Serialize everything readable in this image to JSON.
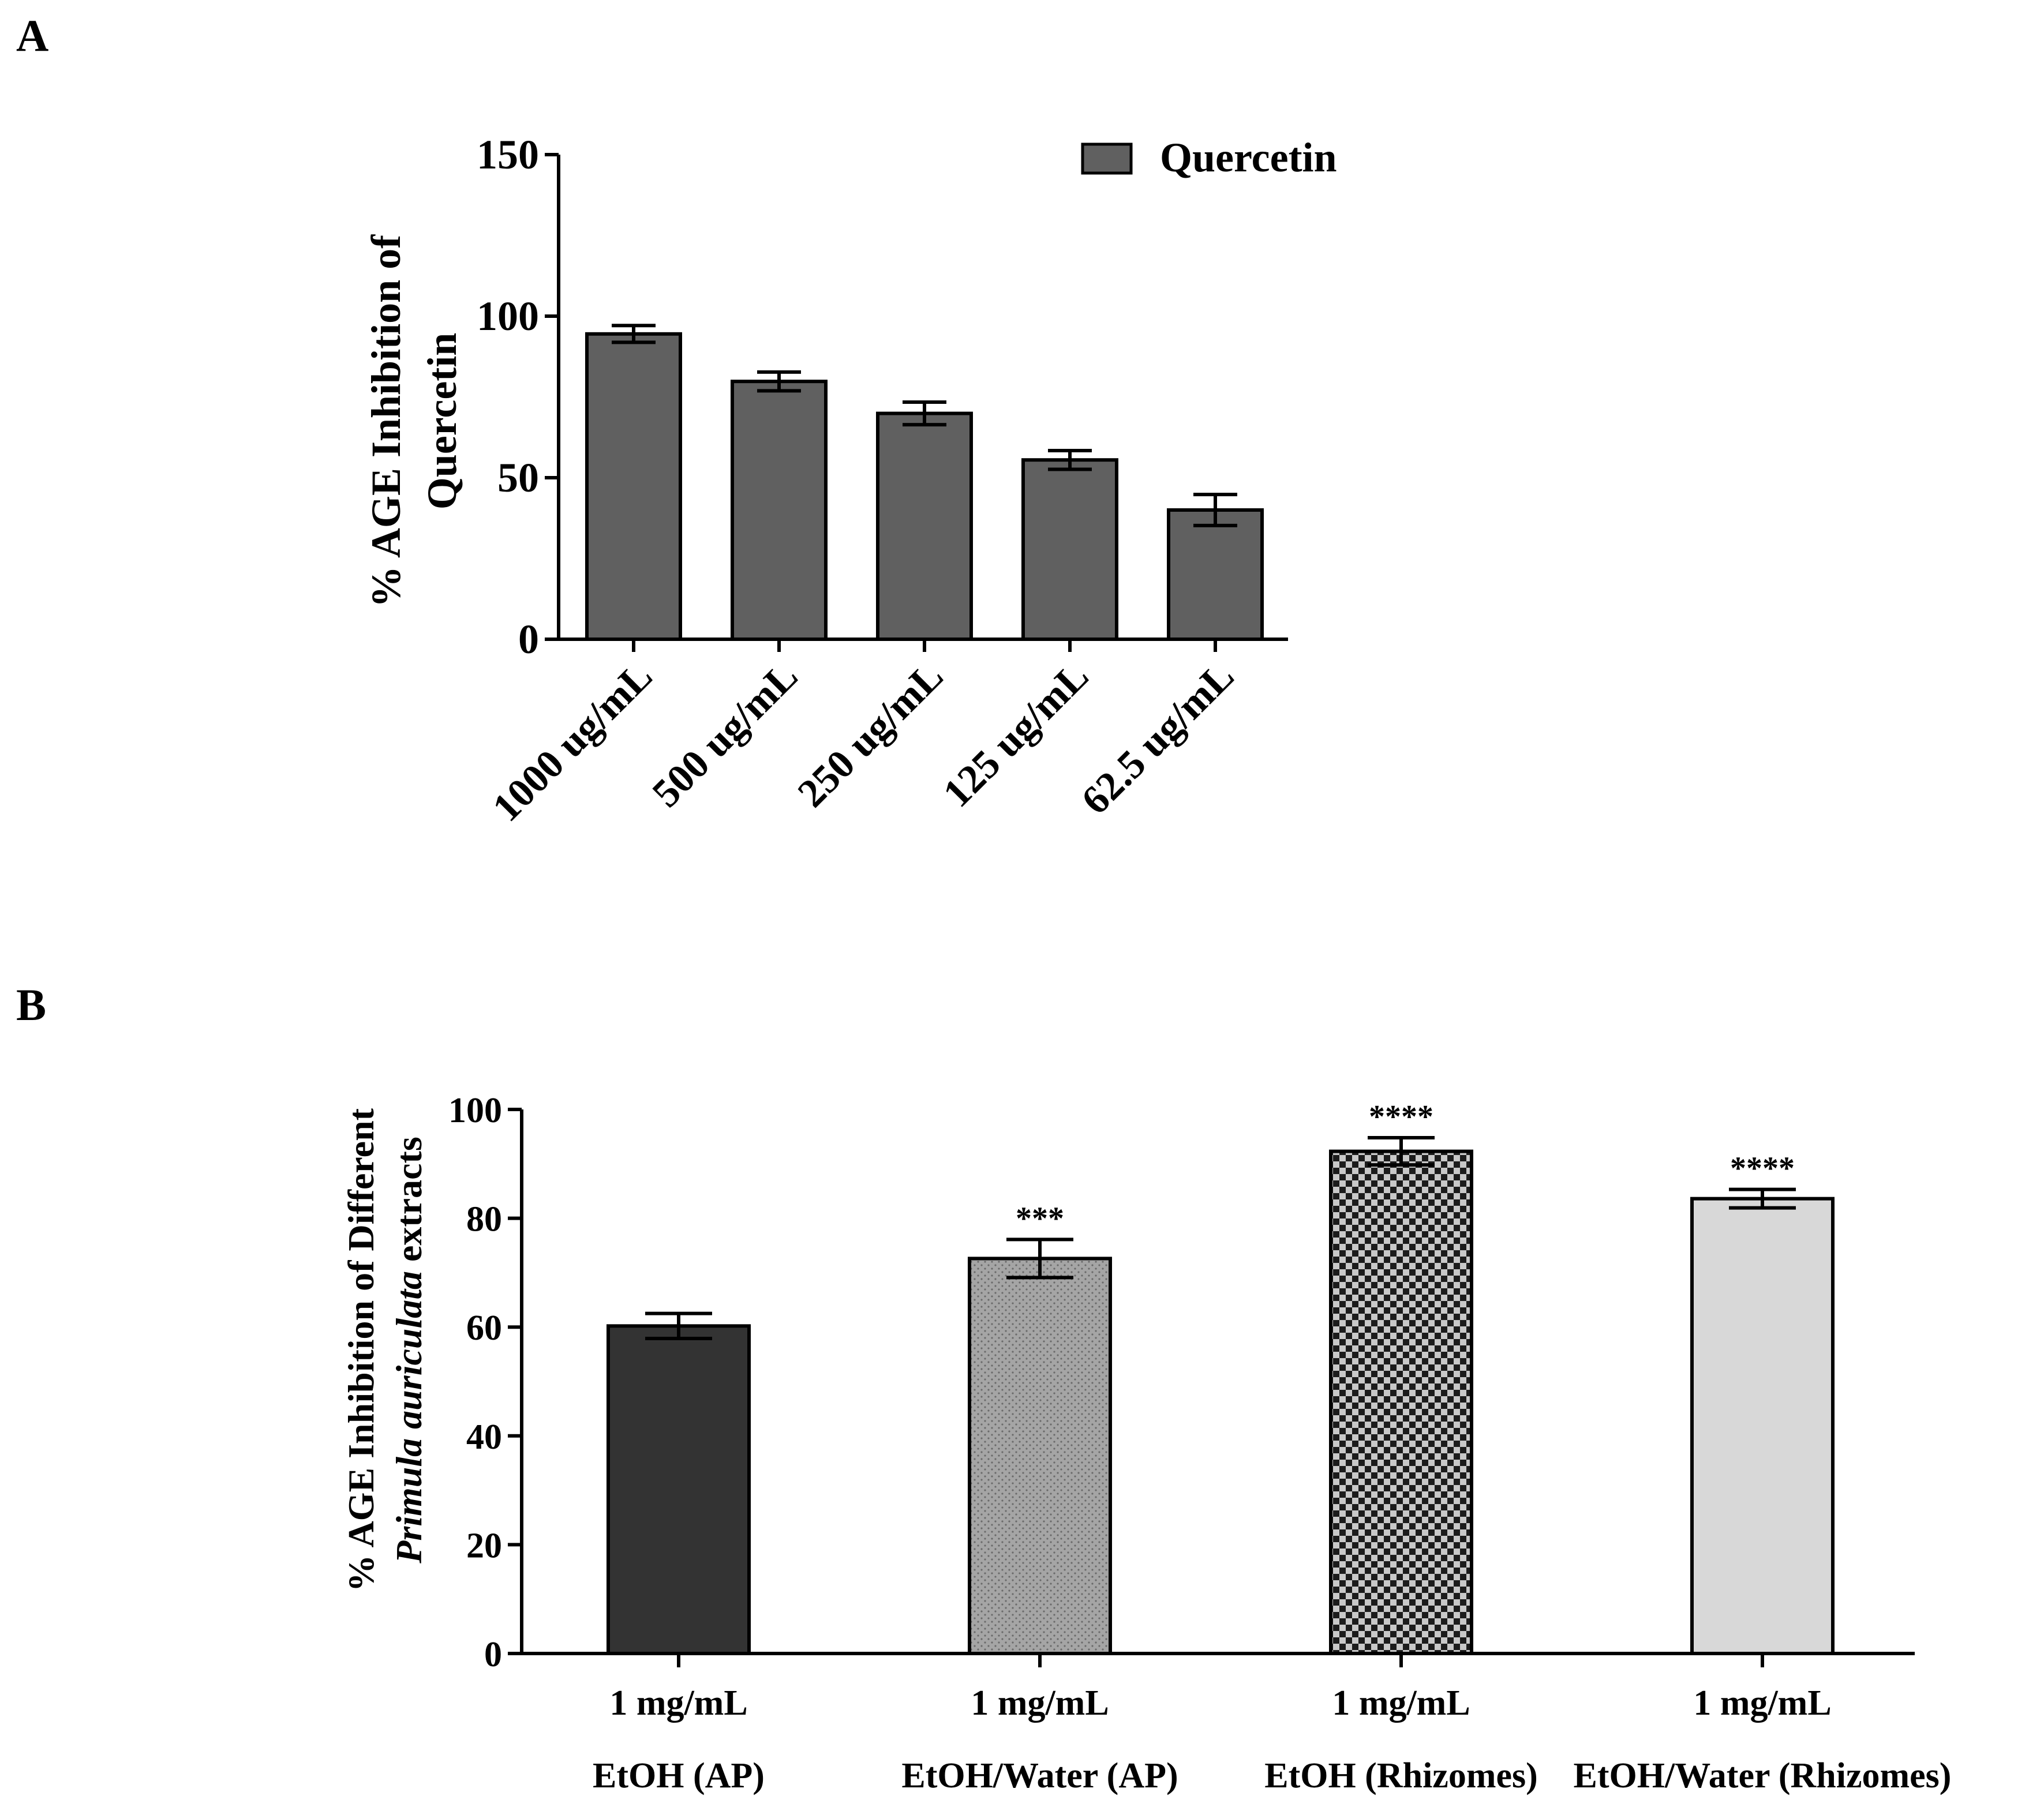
{
  "panels": {
    "a_label": "A",
    "b_label": "B"
  },
  "chart_data": [
    {
      "id": "A",
      "type": "bar",
      "categories": [
        "1000 ug/mL",
        "500 ug/mL",
        "250 ug/mL",
        "125 ug/mL",
        "62.5 ug/mL"
      ],
      "values": [
        94.5,
        79.8,
        69.9,
        55.5,
        40.0
      ],
      "errors": [
        2.6,
        2.9,
        3.5,
        2.9,
        4.8
      ],
      "ylim": [
        0,
        150
      ],
      "yticks": [
        0,
        50,
        100,
        150
      ],
      "ytick_labels": [
        "0",
        "50",
        "100",
        "150"
      ],
      "ylabel_line1": "% AGE Inhibition of",
      "ylabel_line2": "Quercetin",
      "legend": "Quercetin",
      "legend_position": "top-right",
      "bar_color": "#606060",
      "grid": false
    },
    {
      "id": "B",
      "type": "bar",
      "categories": [
        {
          "dose": "1 mg/mL",
          "name": "EtOH (AP)"
        },
        {
          "dose": "1 mg/mL",
          "name": "EtOH/Water (AP)"
        },
        {
          "dose": "1 mg/mL",
          "name": "EtOH (Rhizomes)"
        },
        {
          "dose": "1 mg/mL",
          "name": "EtOH/Water (Rhizomes)"
        }
      ],
      "values": [
        60.2,
        72.6,
        92.3,
        83.6
      ],
      "errors": [
        2.3,
        3.5,
        2.5,
        1.7
      ],
      "significance": [
        "",
        "***",
        "****",
        "****"
      ],
      "fills": [
        "solid-dark",
        "dotted-gray",
        "checkered",
        "solid-light"
      ],
      "colors": {
        "dark": "#333333",
        "gray": "#a5a5a5",
        "light": "#d8d8d8",
        "check_dark": "#1c1c1c",
        "check_light": "#c8c8c8"
      },
      "ylim": [
        0,
        100
      ],
      "yticks": [
        0,
        20,
        40,
        60,
        80,
        100
      ],
      "ytick_labels": [
        "0",
        "20",
        "40",
        "60",
        "80",
        "100"
      ],
      "ylabel_line1": "% AGE Inhibition of Different",
      "ylabel_line2_italic": "Primula auriculata",
      "ylabel_line2_rest": " extracts",
      "grid": false
    }
  ]
}
